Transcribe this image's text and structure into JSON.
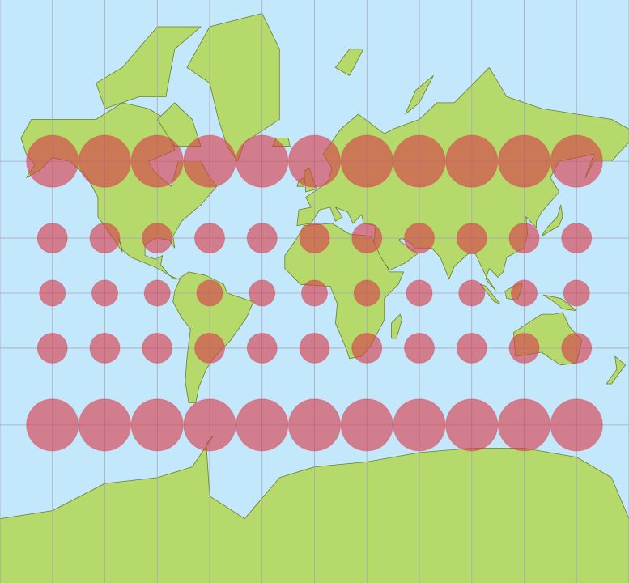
{
  "map": {
    "projection": "mercator",
    "graticule_step_degrees": 30,
    "indicatrix": {
      "latitudes": [
        60,
        30,
        0,
        -30,
        -60
      ],
      "longitudes": [
        -150,
        -120,
        -90,
        -60,
        -30,
        0,
        30,
        60,
        90,
        120,
        150
      ]
    },
    "colors": {
      "ocean": "#c4e8fb",
      "land": "#b5d96a",
      "coastline": "#6b7d2e",
      "graticule": "#a8a8b8",
      "indicatrix": "#d83c4a"
    }
  }
}
